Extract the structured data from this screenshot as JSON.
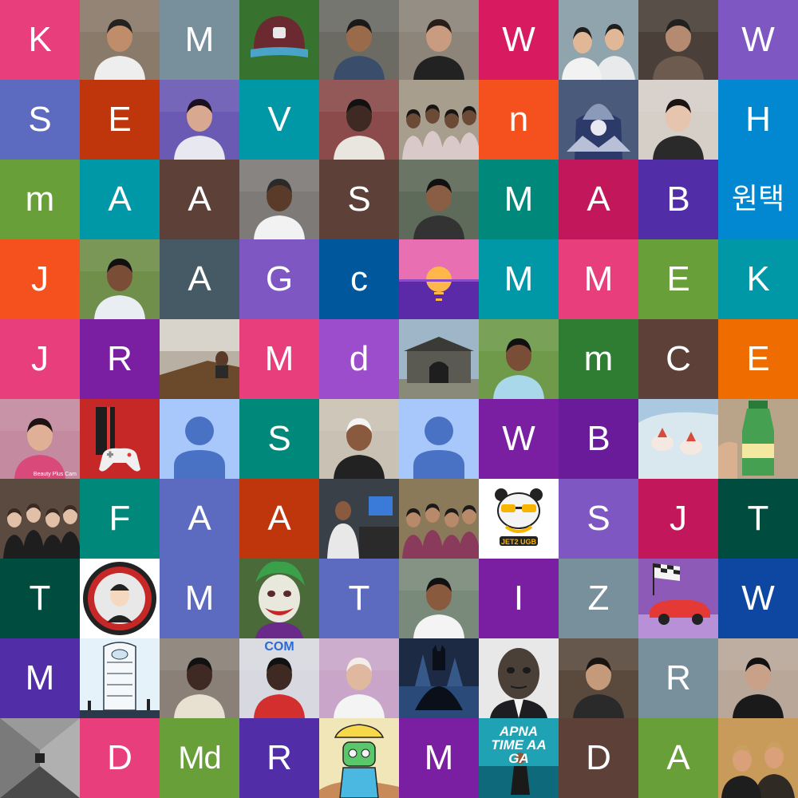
{
  "tiles": [
    {
      "kind": "letter",
      "text": "K",
      "color": "#e83e7c"
    },
    {
      "kind": "photo",
      "name": "photo-man-cap-garage",
      "icon": "person-photo",
      "bg": "#8a7a6a",
      "skin": "#c08d6b",
      "shirt": "#eeeeee",
      "hair": "#222222"
    },
    {
      "kind": "letter",
      "text": "M",
      "color": "#78909c"
    },
    {
      "kind": "photo",
      "name": "photo-baseball-cap-grass",
      "icon": "cap-photo",
      "bg": "#3f7a34"
    },
    {
      "kind": "photo",
      "name": "photo-young-man-selfie",
      "icon": "person-photo",
      "bg": "#6b6b64",
      "skin": "#9a6b4a",
      "shirt": "#3a4d6a",
      "hair": "#1a1a1a"
    },
    {
      "kind": "photo",
      "name": "photo-woman-selfie",
      "icon": "person-photo",
      "bg": "#8d857a",
      "skin": "#c99b80",
      "shirt": "#222222",
      "hair": "#2a1e1a"
    },
    {
      "kind": "letter",
      "text": "W",
      "color": "#d81b60"
    },
    {
      "kind": "photo",
      "name": "photo-couple-lake",
      "icon": "couple-photo",
      "bg": "#8fa4ad",
      "skin": "#e0b898",
      "shirt": "#f2f2f2",
      "hair": "#1e1e1e"
    },
    {
      "kind": "photo",
      "name": "photo-tattooed-man",
      "icon": "person-photo",
      "bg": "#4a4039",
      "skin": "#b48a70",
      "shirt": "#6d5b50",
      "hair": "#202020"
    },
    {
      "kind": "letter",
      "text": "W",
      "color": "#7e57c2"
    },
    {
      "kind": "letter",
      "text": "S",
      "color": "#5c6bc0"
    },
    {
      "kind": "letter",
      "text": "E",
      "color": "#bf360c"
    },
    {
      "kind": "photo",
      "name": "photo-boy-purple-light",
      "icon": "person-photo",
      "bg": "#6a5ab4",
      "skin": "#d8a890",
      "shirt": "#e8e8f0",
      "hair": "#1a1020"
    },
    {
      "kind": "letter",
      "text": "V",
      "color": "#0097a7"
    },
    {
      "kind": "photo",
      "name": "photo-man-posters",
      "icon": "person-photo",
      "bg": "#8a4b4a",
      "skin": "#3e2a22",
      "shirt": "#e9e6e0",
      "hair": "#111111"
    },
    {
      "kind": "photo",
      "name": "photo-group-men",
      "icon": "group-photo",
      "bg": "#a89e8e",
      "skin": "#6b4a36",
      "shirt": "#d9c9c9",
      "hair": "#151515"
    },
    {
      "kind": "letter",
      "text": "n",
      "color": "#f4511e"
    },
    {
      "kind": "photo",
      "name": "photo-samurai-armor",
      "icon": "armor-photo",
      "bg": "#4a5a7a"
    },
    {
      "kind": "photo",
      "name": "photo-woman-portrait",
      "icon": "person-photo",
      "bg": "#d6cfc8",
      "skin": "#e7c4ad",
      "shirt": "#2a2a2a",
      "hair": "#1a1412"
    },
    {
      "kind": "letter",
      "text": "H",
      "color": "#0288d1"
    },
    {
      "kind": "letter",
      "text": "m",
      "color": "#689f38"
    },
    {
      "kind": "letter",
      "text": "A",
      "color": "#0097a7"
    },
    {
      "kind": "letter",
      "text": "A",
      "color": "#5d4037"
    },
    {
      "kind": "photo",
      "name": "photo-man-office",
      "icon": "person-photo",
      "bg": "#7e7a78",
      "skin": "#5a3a28",
      "shirt": "#f2f2f2",
      "hair": "#2a2a2a"
    },
    {
      "kind": "letter",
      "text": "S",
      "color": "#5d4037"
    },
    {
      "kind": "photo",
      "name": "photo-man-waterfall",
      "icon": "person-photo",
      "bg": "#5e6a5a",
      "skin": "#8a5e44",
      "shirt": "#333333",
      "hair": "#111111"
    },
    {
      "kind": "letter",
      "text": "M",
      "color": "#00897b"
    },
    {
      "kind": "letter",
      "text": "A",
      "color": "#c2185b"
    },
    {
      "kind": "letter",
      "text": "B",
      "color": "#512da8"
    },
    {
      "kind": "letter",
      "text": "원택",
      "color": "#0288d1",
      "korean": true
    },
    {
      "kind": "letter",
      "text": "J",
      "color": "#f4511e"
    },
    {
      "kind": "photo",
      "name": "photo-man-garden",
      "icon": "person-photo",
      "bg": "#6f8f4a",
      "skin": "#7a4e36",
      "shirt": "#e8eef2",
      "hair": "#111111"
    },
    {
      "kind": "letter",
      "text": "A",
      "color": "#455a64"
    },
    {
      "kind": "letter",
      "text": "G",
      "color": "#7e57c2"
    },
    {
      "kind": "letter",
      "text": "c",
      "color": "#01579b"
    },
    {
      "kind": "photo",
      "name": "photo-sunset-illustration",
      "icon": "sunset-photo",
      "bg": "#e76fb2"
    },
    {
      "kind": "letter",
      "text": "M",
      "color": "#0097a7"
    },
    {
      "kind": "letter",
      "text": "M",
      "color": "#e83e7c"
    },
    {
      "kind": "letter",
      "text": "E",
      "color": "#689f38"
    },
    {
      "kind": "letter",
      "text": "K",
      "color": "#0097a7"
    },
    {
      "kind": "letter",
      "text": "J",
      "color": "#e83e7c"
    },
    {
      "kind": "letter",
      "text": "R",
      "color": "#7b1fa2"
    },
    {
      "kind": "photo",
      "name": "photo-meeting-room",
      "icon": "room-photo",
      "bg": "#b8b0a2"
    },
    {
      "kind": "letter",
      "text": "M",
      "color": "#e83e7c"
    },
    {
      "kind": "letter",
      "text": "d",
      "color": "#9c4dcc"
    },
    {
      "kind": "photo",
      "name": "photo-fortress-gate",
      "icon": "gate-photo",
      "bg": "#9fb6c9"
    },
    {
      "kind": "photo",
      "name": "photo-man-park",
      "icon": "person-photo",
      "bg": "#6f9a4a",
      "skin": "#7a4e36",
      "shirt": "#a8d8ea",
      "hair": "#111111"
    },
    {
      "kind": "letter",
      "text": "m",
      "color": "#2e7d32"
    },
    {
      "kind": "letter",
      "text": "C",
      "color": "#5d4037"
    },
    {
      "kind": "letter",
      "text": "E",
      "color": "#ef6c00"
    },
    {
      "kind": "photo",
      "name": "photo-girl-beauty-cam",
      "icon": "person-photo",
      "bg": "#c48aa0",
      "skin": "#e0b096",
      "shirt": "#d94a7a",
      "hair": "#1e1212",
      "caption": "Beauty Plus Cam"
    },
    {
      "kind": "photo",
      "name": "photo-game-console",
      "icon": "gamepad-icon",
      "bg": "#c62828"
    },
    {
      "kind": "photo",
      "name": "default-avatar-1",
      "icon": "default-avatar-icon",
      "bg": "#a8c7fa"
    },
    {
      "kind": "letter",
      "text": "S",
      "color": "#00897b"
    },
    {
      "kind": "photo",
      "name": "photo-man-chef-hat",
      "icon": "person-photo",
      "bg": "#c9c2b4",
      "skin": "#8a5a3e",
      "shirt": "#222222",
      "hair": "#f4f4f4"
    },
    {
      "kind": "photo",
      "name": "default-avatar-2",
      "icon": "default-avatar-icon",
      "bg": "#a8c7fa"
    },
    {
      "kind": "letter",
      "text": "W",
      "color": "#7b1fa2"
    },
    {
      "kind": "letter",
      "text": "B",
      "color": "#6a1b9a"
    },
    {
      "kind": "photo",
      "name": "photo-desserts",
      "icon": "dessert-photo",
      "bg": "#d9e8ee"
    },
    {
      "kind": "photo",
      "name": "photo-green-bottle",
      "icon": "bottle-photo",
      "bg": "#b9a48a"
    },
    {
      "kind": "photo",
      "name": "photo-party-women",
      "icon": "group-photo",
      "bg": "#5a4a40",
      "skin": "#e2c0a8",
      "shirt": "#1e1e1e",
      "hair": "#3a2a22"
    },
    {
      "kind": "letter",
      "text": "F",
      "color": "#00897b"
    },
    {
      "kind": "letter",
      "text": "A",
      "color": "#5c6bc0"
    },
    {
      "kind": "letter",
      "text": "A",
      "color": "#bf360c"
    },
    {
      "kind": "photo",
      "name": "photo-computer-desk",
      "icon": "computer-photo",
      "bg": "#3a4048"
    },
    {
      "kind": "photo",
      "name": "photo-family-outdoors",
      "icon": "group-photo",
      "bg": "#8b7a5a",
      "skin": "#b88a6a",
      "shirt": "#8a3a5a",
      "hair": "#1a1a1a"
    },
    {
      "kind": "photo",
      "name": "photo-panda-cartoon",
      "icon": "panda-photo",
      "bg": "#ffffff",
      "caption": "JET2 UGB"
    },
    {
      "kind": "letter",
      "text": "S",
      "color": "#7e57c2"
    },
    {
      "kind": "letter",
      "text": "J",
      "color": "#c2185b"
    },
    {
      "kind": "letter",
      "text": "T",
      "color": "#004d40"
    },
    {
      "kind": "letter",
      "text": "T",
      "color": "#004d40"
    },
    {
      "kind": "photo",
      "name": "photo-round-logo-badge",
      "icon": "badge-photo",
      "bg": "#ffffff"
    },
    {
      "kind": "letter",
      "text": "M",
      "color": "#5c6bc0"
    },
    {
      "kind": "photo",
      "name": "photo-joker-illustration",
      "icon": "joker-photo",
      "bg": "#4a6a3a"
    },
    {
      "kind": "letter",
      "text": "T",
      "color": "#5c6bc0"
    },
    {
      "kind": "photo",
      "name": "photo-man-white-shirt",
      "icon": "person-photo",
      "bg": "#7a8a7a",
      "skin": "#8a5a3e",
      "shirt": "#f4f4f4",
      "hair": "#111111"
    },
    {
      "kind": "letter",
      "text": "I",
      "color": "#7b1fa2"
    },
    {
      "kind": "letter",
      "text": "Z",
      "color": "#78909c"
    },
    {
      "kind": "photo",
      "name": "photo-race-car-flag",
      "icon": "racecar-photo",
      "bg": "#8e5ab8"
    },
    {
      "kind": "letter",
      "text": "W",
      "color": "#0d47a1"
    },
    {
      "kind": "letter",
      "text": "M",
      "color": "#512da8"
    },
    {
      "kind": "photo",
      "name": "photo-sketch-building",
      "icon": "sketch-photo",
      "bg": "#e6f2fa"
    },
    {
      "kind": "photo",
      "name": "photo-man-sunglasses",
      "icon": "person-photo",
      "bg": "#8a8078",
      "skin": "#3e2a22",
      "shirt": "#e8e0d0",
      "hair": "#111111"
    },
    {
      "kind": "photo",
      "name": "photo-man-red-shirt",
      "icon": "person-photo",
      "bg": "#d8d8e0",
      "skin": "#3e2a22",
      "shirt": "#d32f2f",
      "hair": "#111111",
      "caption": "COM"
    },
    {
      "kind": "photo",
      "name": "photo-woman-hijab",
      "icon": "person-photo",
      "bg": "#c9a6c9",
      "skin": "#e0b8a0",
      "shirt": "#f4f4f4",
      "hair": "#f2ede8"
    },
    {
      "kind": "photo",
      "name": "photo-dark-superhero",
      "icon": "hero-photo",
      "bg": "#1c2a44"
    },
    {
      "kind": "photo",
      "name": "photo-zombie-face",
      "icon": "zombie-photo",
      "bg": "#e8e8e8"
    },
    {
      "kind": "photo",
      "name": "photo-bearded-man",
      "icon": "person-photo",
      "bg": "#5a4a3e",
      "skin": "#c49a7a",
      "shirt": "#2a2a2a",
      "hair": "#1a1410"
    },
    {
      "kind": "letter",
      "text": "R",
      "color": "#78909c"
    },
    {
      "kind": "photo",
      "name": "photo-man-black-jacket",
      "icon": "person-photo",
      "bg": "#b9a89a",
      "skin": "#c9a088",
      "shirt": "#1a1a1a",
      "hair": "#111111"
    },
    {
      "kind": "photo",
      "name": "photo-metal-tunnel",
      "icon": "tunnel-photo",
      "bg": "#6a6a6a"
    },
    {
      "kind": "letter",
      "text": "D",
      "color": "#e83e7c"
    },
    {
      "kind": "letter",
      "text": "Md",
      "color": "#689f38",
      "long": true
    },
    {
      "kind": "letter",
      "text": "R",
      "color": "#512da8"
    },
    {
      "kind": "photo",
      "name": "photo-cartoon-robot",
      "icon": "robot-photo",
      "bg": "#f0e6b8"
    },
    {
      "kind": "letter",
      "text": "M",
      "color": "#7b1fa2"
    },
    {
      "kind": "photo",
      "name": "photo-apna-time-poster",
      "icon": "poster-photo",
      "bg": "#1fa3b4",
      "caption": "APNA TIME AA GA"
    },
    {
      "kind": "letter",
      "text": "D",
      "color": "#5d4037"
    },
    {
      "kind": "letter",
      "text": "A",
      "color": "#689f38"
    },
    {
      "kind": "photo",
      "name": "photo-two-women-smiling",
      "icon": "couple-photo",
      "bg": "#c99b5a",
      "skin": "#d9a07a",
      "shirt": "#1e1e1e",
      "hair": "#c9a060"
    }
  ]
}
